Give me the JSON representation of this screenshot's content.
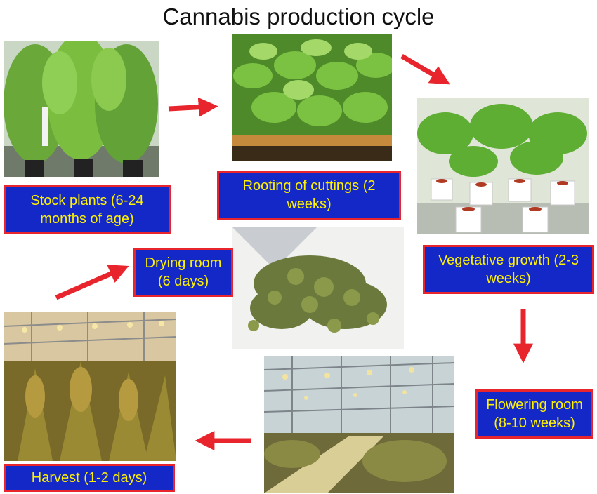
{
  "title": "Cannabis production cycle",
  "colors": {
    "box_fill": "#1428c8",
    "box_border": "#e8242c",
    "box_text": "#fff200",
    "arrow": "#e8242c"
  },
  "stages": {
    "stock_plants": "Stock plants (6-24 months of age)",
    "rooting": "Rooting of cuttings (2 weeks)",
    "vegetative": "Vegetative growth (2-3 weeks)",
    "flowering": "Flowering room (8-10 weeks)",
    "harvest": "Harvest (1-2 days)",
    "drying": "Drying room (6 days)"
  }
}
